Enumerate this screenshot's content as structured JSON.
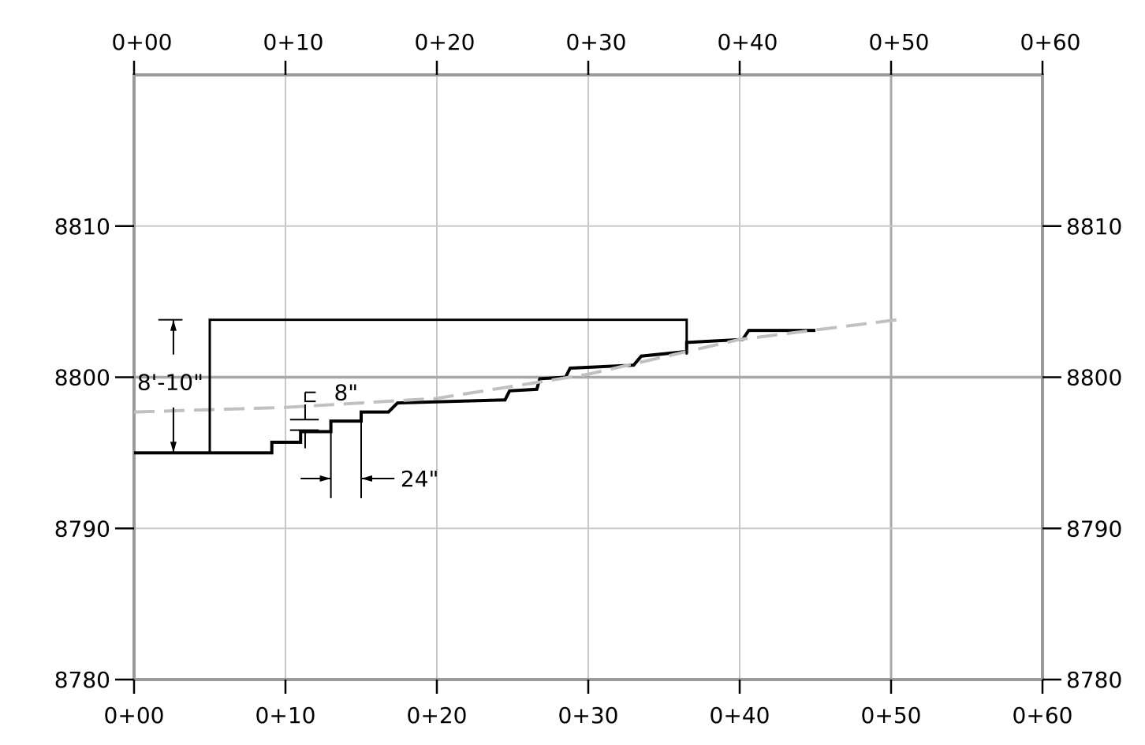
{
  "chart_data": {
    "type": "line",
    "title": "",
    "xlabel": "",
    "ylabel": "",
    "xlim": [
      0,
      60
    ],
    "ylim": [
      8780,
      8820
    ],
    "grid": true,
    "x_ticks": [
      {
        "value": 0,
        "label": "0+00"
      },
      {
        "value": 10,
        "label": "0+10"
      },
      {
        "value": 20,
        "label": "0+20"
      },
      {
        "value": 30,
        "label": "0+30"
      },
      {
        "value": 40,
        "label": "0+40"
      },
      {
        "value": 50,
        "label": "0+50"
      },
      {
        "value": 60,
        "label": "0+60"
      }
    ],
    "y_ticks": [
      {
        "value": 8780,
        "label": "8780"
      },
      {
        "value": 8790,
        "label": "8790"
      },
      {
        "value": 8800,
        "label": "8800"
      },
      {
        "value": 8810,
        "label": "8810"
      }
    ],
    "series": [
      {
        "style": "solid-thick",
        "color": "#000000",
        "points": [
          [
            0,
            8795.0
          ],
          [
            9.1,
            8795.0
          ],
          [
            9.1,
            8795.7
          ],
          [
            11.0,
            8795.7
          ],
          [
            11.0,
            8796.4
          ],
          [
            13.0,
            8796.4
          ],
          [
            13.0,
            8797.1
          ],
          [
            15.0,
            8797.1
          ],
          [
            15.0,
            8797.7
          ],
          [
            16.8,
            8797.7
          ],
          [
            17.4,
            8798.3
          ],
          [
            24.5,
            8798.5
          ],
          [
            24.8,
            8799.1
          ],
          [
            26.6,
            8799.2
          ],
          [
            26.8,
            8799.9
          ],
          [
            28.5,
            8800.0
          ],
          [
            28.8,
            8800.6
          ],
          [
            33.0,
            8800.8
          ],
          [
            33.5,
            8801.4
          ],
          [
            36.5,
            8801.7
          ],
          [
            36.5,
            8802.3
          ],
          [
            40.2,
            8802.5
          ],
          [
            40.6,
            8803.1
          ],
          [
            45.0,
            8803.1
          ]
        ]
      },
      {
        "style": "dashed",
        "color": "#c0c0c0",
        "points": [
          [
            0,
            8797.7
          ],
          [
            10,
            8798.0
          ],
          [
            20,
            8798.6
          ],
          [
            30,
            8800.2
          ],
          [
            40,
            8802.5
          ],
          [
            50.4,
            8803.8
          ]
        ]
      },
      {
        "style": "solid",
        "color": "#000000",
        "points": [
          [
            0,
            8795.0
          ],
          [
            5.0,
            8795.0
          ],
          [
            5.0,
            8803.8
          ],
          [
            36.5,
            8803.8
          ],
          [
            36.5,
            8801.5
          ]
        ]
      }
    ],
    "annotations": [
      {
        "text": "8'-10\"",
        "x": 0.2,
        "y": 8799.7
      },
      {
        "text": "8\"",
        "x": 13.2,
        "y": 8799.0
      },
      {
        "text": "24\"",
        "x": 17.6,
        "y": 8793.3
      }
    ]
  }
}
